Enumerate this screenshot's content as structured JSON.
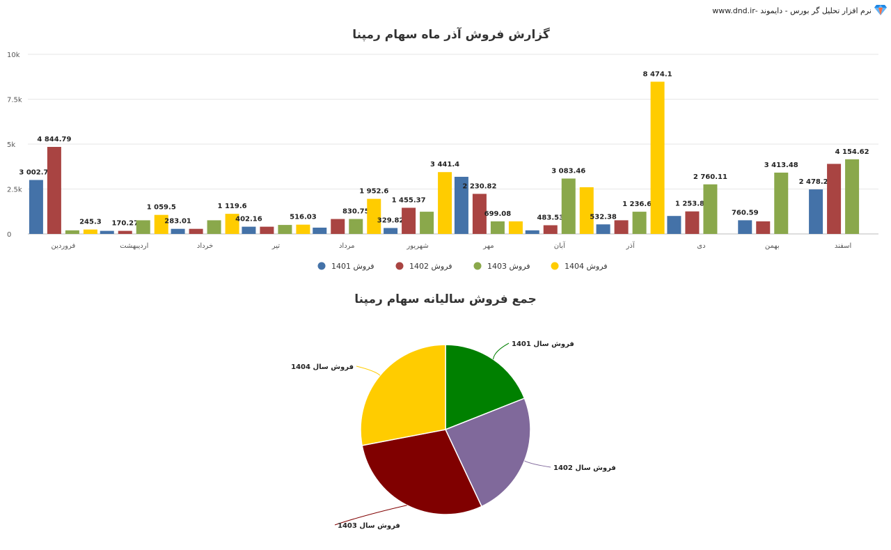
{
  "brand": {
    "text": "نرم افزار تحلیل گر بورس - دایموند -www.dnd.ir",
    "icon": "diamond-icon",
    "icon_colors": [
      "#1e88e5",
      "#64b5f6",
      "#ff7043"
    ]
  },
  "chart_data": [
    {
      "type": "bar",
      "title": "گزارش فروش آذر ماه سهام رمپنا",
      "categories": [
        "فروردین",
        "اردیبهشت",
        "خرداد",
        "تیر",
        "مرداد",
        "شهریور",
        "مهر",
        "آبان",
        "آذر",
        "دی",
        "بهمن",
        "اسفند"
      ],
      "ylim": [
        0,
        10000
      ],
      "yticks": [
        0,
        2500,
        5000,
        7500,
        10000
      ],
      "ytick_labels": [
        "0",
        "2.5k",
        "5k",
        "7.5k",
        "10k"
      ],
      "grid": true,
      "legend": "bottom-center",
      "series": [
        {
          "name": "فروش 1401",
          "color": "#4472a8",
          "values": [
            3002.77,
            170.27,
            283.01,
            402.16,
            350,
            329.82,
            3180,
            200,
            532.38,
            1000,
            760.59,
            2478.28
          ],
          "labels": [
            "3 002.77",
            null,
            "283.01",
            "402.16",
            null,
            "329.82",
            null,
            null,
            "532.38",
            null,
            "760.59",
            "2 478.28"
          ]
        },
        {
          "name": "فروش 1402",
          "color": "#a94442",
          "values": [
            4844.79,
            170.27,
            283.01,
            402.16,
            830.75,
            1455.37,
            2230.82,
            483.53,
            760,
            1253.85,
            700,
            3900
          ],
          "labels": [
            "4 844.79",
            "170.27",
            null,
            null,
            null,
            "1 455.37",
            "2 230.82",
            "483.53",
            null,
            "1 253.85",
            null,
            null
          ]
        },
        {
          "name": "فروش 1403",
          "color": "#8aa84b",
          "values": [
            200,
            760,
            760,
            500,
            830.75,
            1236.69,
            699.08,
            3083.46,
            1236.69,
            2760.11,
            3413.48,
            4154.62
          ],
          "labels": [
            null,
            null,
            null,
            null,
            "830.75",
            null,
            "699.08",
            "3 083.46",
            "1 236.69",
            "2 760.11",
            "3 413.48",
            "4 154.62"
          ]
        },
        {
          "name": "فروش 1404",
          "color": "#ffcc00",
          "values": [
            245.3,
            1059.5,
            1119.6,
            516.03,
            1952.6,
            3441.4,
            699.08,
            2600,
            8474.1,
            null,
            null,
            null
          ],
          "labels": [
            "245.3",
            "1 059.5",
            "1 119.6",
            "516.03",
            "1 952.6",
            "3 441.4",
            null,
            null,
            "8 474.1",
            null,
            null,
            null
          ]
        }
      ]
    },
    {
      "type": "pie",
      "title": "جمع فروش سالیانه سهام رمپنا",
      "legend": "none",
      "slices": [
        {
          "name": "فروش سال 1401",
          "value": 19,
          "color": "#008000"
        },
        {
          "name": "فروش سال 1402",
          "value": 24,
          "color": "#80699b"
        },
        {
          "name": "فروش سال 1403",
          "value": 29,
          "color": "#800000"
        },
        {
          "name": "فروش سال 1404",
          "value": 28,
          "color": "#ffcc00"
        }
      ]
    }
  ]
}
